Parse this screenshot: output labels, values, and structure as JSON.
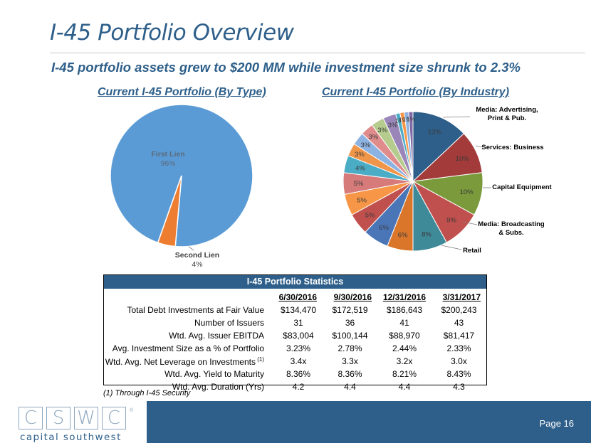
{
  "header": {
    "title": "I-45 Portfolio Overview",
    "subtitle": "I-45 portfolio assets grew to $200 MM while investment size shrunk to 2.3%"
  },
  "charts": {
    "by_type_title": "Current I-45 Portfolio (By Type)",
    "by_industry_title": "Current I-45 Portfolio (By Industry)"
  },
  "chart_data": [
    {
      "type": "pie",
      "title": "Current I-45 Portfolio (By Type)",
      "slices": [
        {
          "label": "First Lien",
          "value": 96,
          "display": "96%",
          "color": "#5b9bd5"
        },
        {
          "label": "Second Lien",
          "value": 4,
          "display": "4%",
          "color": "#ed7d31"
        }
      ]
    },
    {
      "type": "pie",
      "title": "Current I-45 Portfolio (By Industry)",
      "slices": [
        {
          "label": "Media: Advertising, Print & Pub.",
          "value": 13,
          "display": "13%",
          "color": "#2e5f8a"
        },
        {
          "label": "Services: Business",
          "value": 10,
          "display": "10%",
          "color": "#a33b3b"
        },
        {
          "label": "Capital Equipment",
          "value": 10,
          "display": "10%",
          "color": "#7a9a3c"
        },
        {
          "label": "Media: Broadcasting & Subs.",
          "value": 9,
          "display": "9%",
          "color": "#c0504d"
        },
        {
          "label": "Retail",
          "value": 8,
          "display": "8%",
          "color": "#3f8a99"
        },
        {
          "label": "",
          "value": 6,
          "display": "6%",
          "color": "#d9762a"
        },
        {
          "label": "",
          "value": 6,
          "display": "6%",
          "color": "#4a76b8"
        },
        {
          "label": "",
          "value": 5,
          "display": "5%",
          "color": "#c0504d"
        },
        {
          "label": "",
          "value": 5,
          "display": "5%",
          "color": "#f79646"
        },
        {
          "label": "",
          "value": 5,
          "display": "5%",
          "color": "#d77a7a"
        },
        {
          "label": "",
          "value": 4,
          "display": "4%",
          "color": "#4bacc6"
        },
        {
          "label": "",
          "value": 3,
          "display": "3%",
          "color": "#f0964a"
        },
        {
          "label": "",
          "value": 3,
          "display": "3%",
          "color": "#8db3e2"
        },
        {
          "label": "",
          "value": 3,
          "display": "3%",
          "color": "#e08c8c"
        },
        {
          "label": "",
          "value": 3,
          "display": "3%",
          "color": "#b5cc8e"
        },
        {
          "label": "",
          "value": 3,
          "display": "3%",
          "color": "#9a86b8"
        },
        {
          "label": "",
          "value": 1,
          "display": "1%",
          "color": "#4bacc6"
        },
        {
          "label": "",
          "value": 1,
          "display": "1%",
          "color": "#f79646"
        },
        {
          "label": "",
          "value": 1,
          "display": "1%",
          "color": "#8db3e2"
        },
        {
          "label": "",
          "value": 1,
          "display": "1%",
          "color": "#7f6aa6"
        }
      ]
    }
  ],
  "stats": {
    "header": "I-45 Portfolio Statistics",
    "columns": [
      "6/30/2016",
      "9/30/2016",
      "12/31/2016",
      "3/31/2017"
    ],
    "rows": [
      {
        "label": "Total Debt Investments at Fair Value",
        "sup": "",
        "values": [
          "$134,470",
          "$172,519",
          "$186,643",
          "$200,243"
        ]
      },
      {
        "label": "Number of Issuers",
        "sup": "",
        "values": [
          "31",
          "36",
          "41",
          "43"
        ]
      },
      {
        "label": "Wtd. Avg. Issuer EBITDA",
        "sup": "",
        "values": [
          "$83,004",
          "$100,144",
          "$88,970",
          "$81,417"
        ]
      },
      {
        "label": "Avg. Investment Size as a % of Portfolio",
        "sup": "",
        "values": [
          "3.23%",
          "2.78%",
          "2.44%",
          "2.33%"
        ]
      },
      {
        "label": "Wtd. Avg. Net Leverage on Investments",
        "sup": "(1)",
        "values": [
          "3.4x",
          "3.3x",
          "3.2x",
          "3.0x"
        ]
      },
      {
        "label": "Wtd. Avg. Yield to Maturity",
        "sup": "",
        "values": [
          "8.36%",
          "8.36%",
          "8.21%",
          "8.43%"
        ]
      },
      {
        "label": "Wtd. Avg. Duration (Yrs)",
        "sup": "",
        "values": [
          "4.2",
          "4.4",
          "4.4",
          "4.3"
        ]
      }
    ]
  },
  "footnote": "(1) Through I-45 Security",
  "footer": {
    "logo_letters": [
      "C",
      "S",
      "W",
      "C"
    ],
    "logo_name": "capital southwest",
    "logo_reg": "®",
    "page": "Page 16"
  }
}
